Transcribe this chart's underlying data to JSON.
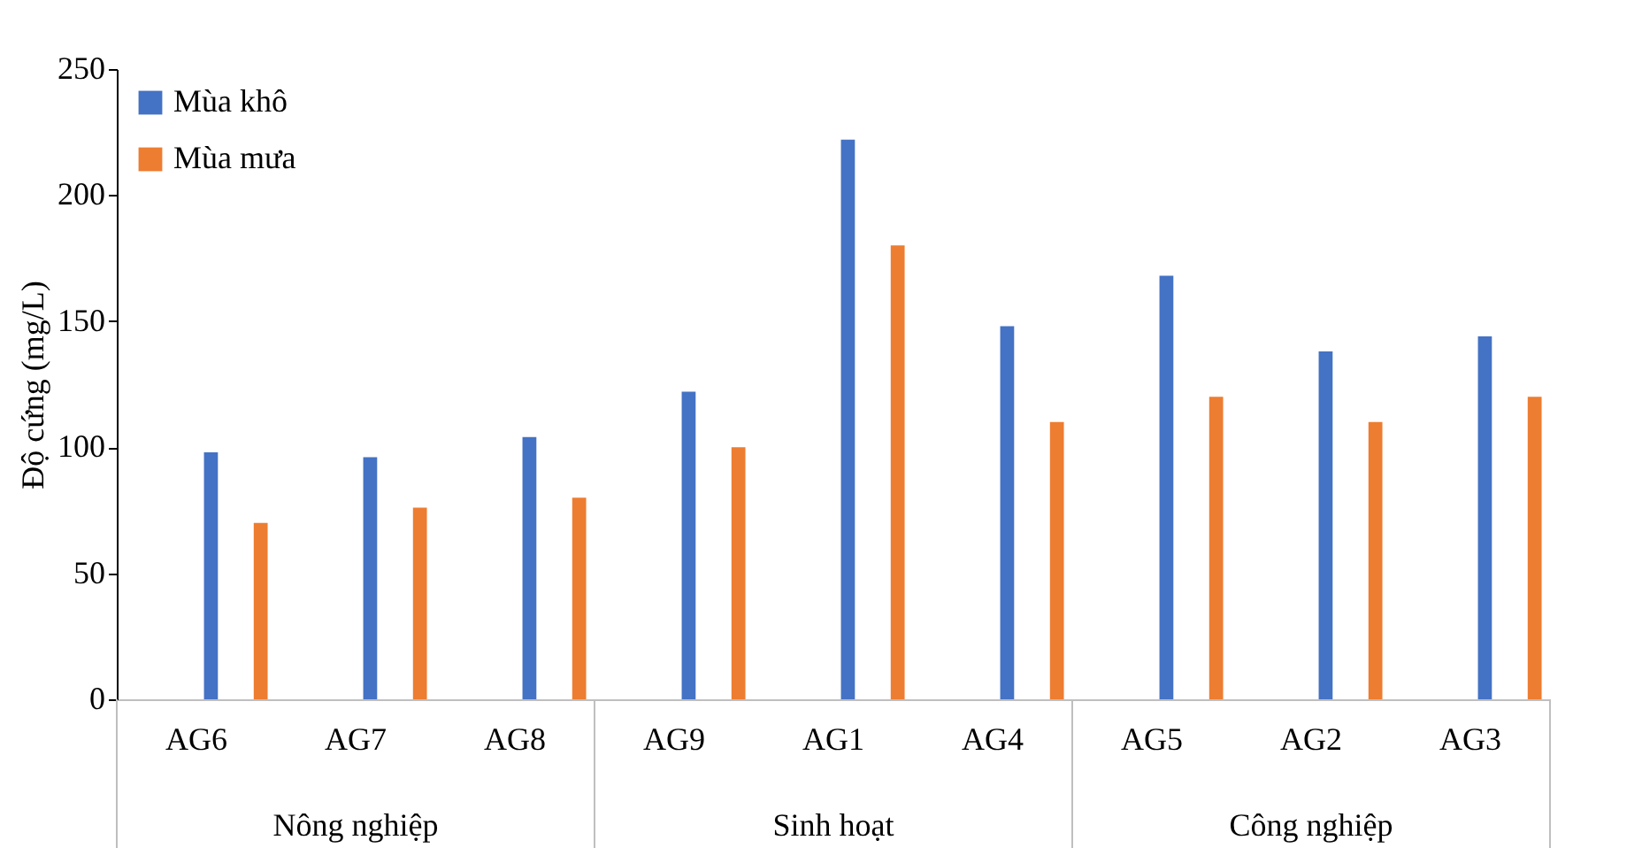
{
  "chart_data": {
    "type": "bar",
    "ylabel": "Độ cứng (mg/L)",
    "categories": [
      "AG6",
      "AG7",
      "AG8",
      "AG9",
      "AG1",
      "AG4",
      "AG5",
      "AG2",
      "AG3"
    ],
    "series": [
      {
        "name": "Mùa khô",
        "color": "#4472c4",
        "values": [
          98,
          96,
          104,
          122,
          222,
          148,
          168,
          138,
          144
        ]
      },
      {
        "name": "Mùa mưa",
        "color": "#ed7d31",
        "values": [
          70,
          76,
          80,
          100,
          180,
          110,
          120,
          110,
          120
        ]
      }
    ],
    "ylim": [
      0,
      250
    ],
    "yticks": [
      0,
      50,
      100,
      150,
      200,
      250
    ],
    "grid": false,
    "legend": "top left",
    "annotations": [
      "Nông nghiệp",
      "Sinh hoạt",
      "Công nghiệp"
    ]
  }
}
